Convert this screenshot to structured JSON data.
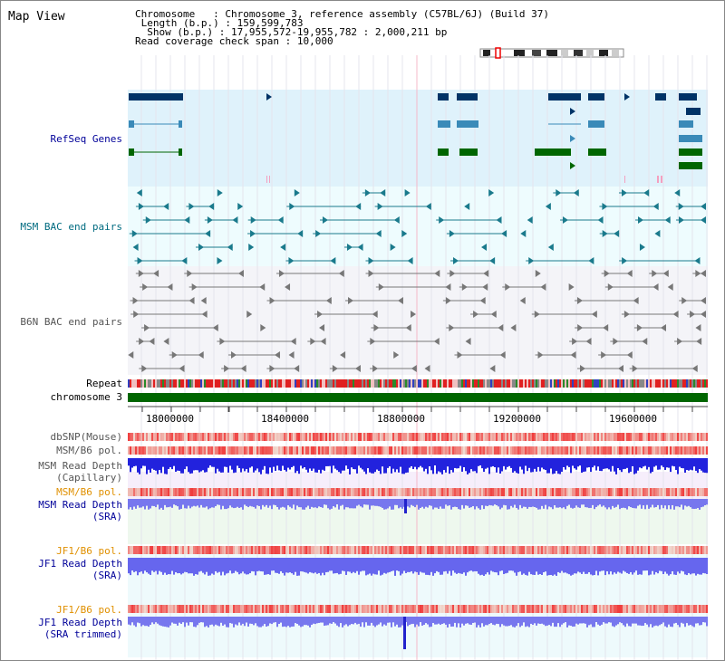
{
  "title": "Map View",
  "info": {
    "chromosome_label": "Chromosome",
    "chromosome_value": "Chromosome 3, reference assembly (C57BL/6J) (Build 37)",
    "length_label": "Length (b.p.)",
    "length_value": "159,599,783",
    "show_label": "Show (b.p.)",
    "show_value": "17,955,572-19,955,782 : 2,000,211 bp",
    "coverage_label": "Read coverage check span",
    "coverage_value": "10,000"
  },
  "tracks": {
    "refseq": "RefSeq Genes",
    "msm_bac": "MSM BAC end pairs",
    "b6n_bac": "B6N BAC end pairs",
    "repeat": "Repeat",
    "chromosome": "chromosome 3",
    "dbsnp": "dbSNP(Mouse)",
    "msm_b6_pol_1": "MSM/B6 pol.",
    "msm_depth_cap_1": "MSM Read Depth",
    "msm_depth_cap_2": "(Capillary)",
    "msm_b6_pol_2": "MSM/B6 pol.",
    "msm_depth_sra_1": "MSM Read Depth",
    "msm_depth_sra_2": "(SRA)",
    "jf1_b6_pol_1": "JF1/B6 pol.",
    "jf1_depth_sra_1": "JF1 Read Depth",
    "jf1_depth_sra_2": "(SRA)",
    "jf1_b6_pol_2": "JF1/B6 pol.",
    "jf1_depth_trim_1": "JF1 Read Depth",
    "jf1_depth_trim_2": "(SRA trimmed)"
  },
  "axis": {
    "ticks": [
      "18000000",
      "18400000",
      "18800000",
      "19200000",
      "19600000"
    ]
  },
  "colors": {
    "refseq_bg": "#dff2fb",
    "msm_bg": "#eefcfe",
    "b6n_bg": "#f4f4f8",
    "gene_dark": "#003366",
    "gene_mid": "#3a8ab8",
    "gene_green": "#006600",
    "chromosome": "#006600",
    "depth_blue": "#2222dd",
    "depth_light": "#7777ee"
  }
}
